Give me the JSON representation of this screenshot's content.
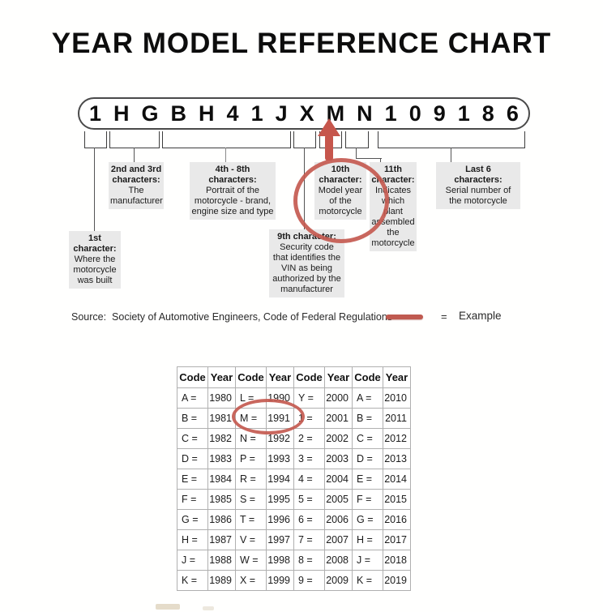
{
  "title": "YEAR MODEL REFERENCE CHART",
  "colors": {
    "accent_red": "#c45a50",
    "callout_bg": "#e9e9e9",
    "table_border": "#b0b0b0"
  },
  "vin": {
    "characters": [
      "1",
      "H",
      "G",
      "B",
      "H",
      "4",
      "1",
      "J",
      "X",
      "M",
      "N",
      "1",
      "0",
      "9",
      "1",
      "8",
      "6"
    ]
  },
  "callouts": [
    {
      "heading": "1st\ncharacter:",
      "body": "Where the\nmotorcycle\nwas built"
    },
    {
      "heading": "2nd and 3rd\ncharacters:",
      "body": "The\nmanufacturer"
    },
    {
      "heading": "4th - 8th\ncharacters:",
      "body": "Portrait of the\nmotorcycle - brand,\nengine size and type"
    },
    {
      "heading": "9th character:",
      "body": "Security code\nthat identifies the\nVIN as being\nauthorized by the\nmanufacturer"
    },
    {
      "heading": "10th\ncharacter:",
      "body": "Model year\nof the\nmotorcycle"
    },
    {
      "heading": "11th\ncharacter:",
      "body": "Indicates\nwhich plant\nassembled\nthe\nmotorcycle"
    },
    {
      "heading": "Last 6\ncharacters:",
      "body": "Serial number of\nthe motorcycle"
    }
  ],
  "source": {
    "text": "Source:  Society of Automotive Engineers, Code of Federal Regulations"
  },
  "legend": {
    "equals": "=",
    "label": "Example"
  },
  "chart_data": {
    "type": "table",
    "headers": [
      "Code",
      "Year",
      "Code",
      "Year",
      "Code",
      "Year",
      "Code",
      "Year"
    ],
    "rows": [
      [
        "A =",
        "1980",
        "L =",
        "1990",
        "Y =",
        "2000",
        "A =",
        "2010"
      ],
      [
        "B =",
        "1981",
        "M =",
        "1991",
        "1 =",
        "2001",
        "B =",
        "2011"
      ],
      [
        "C =",
        "1982",
        "N =",
        "1992",
        "2 =",
        "2002",
        "C =",
        "2012"
      ],
      [
        "D =",
        "1983",
        "P =",
        "1993",
        "3 =",
        "2003",
        "D =",
        "2013"
      ],
      [
        "E =",
        "1984",
        "R =",
        "1994",
        "4 =",
        "2004",
        "E =",
        "2014"
      ],
      [
        "F =",
        "1985",
        "S =",
        "1995",
        "5 =",
        "2005",
        "F =",
        "2015"
      ],
      [
        "G =",
        "1986",
        "T =",
        "1996",
        "6 =",
        "2006",
        "G =",
        "2016"
      ],
      [
        "H =",
        "1987",
        "V =",
        "1997",
        "7 =",
        "2007",
        "H =",
        "2017"
      ],
      [
        "J =",
        "1988",
        "W =",
        "1998",
        "8 =",
        "2008",
        "J =",
        "2018"
      ],
      [
        "K =",
        "1989",
        "X =",
        "1999",
        "9 =",
        "2009",
        "K =",
        "2019"
      ]
    ]
  }
}
